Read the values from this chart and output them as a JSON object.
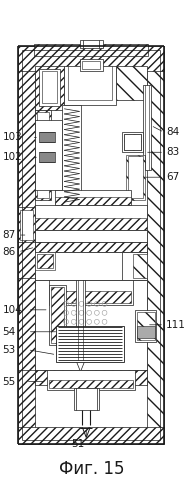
{
  "bg_color": "#ffffff",
  "line_color": "#1a1a1a",
  "fig_width": 1.9,
  "fig_height": 5.0,
  "dpi": 100,
  "caption": "Фиг. 15"
}
